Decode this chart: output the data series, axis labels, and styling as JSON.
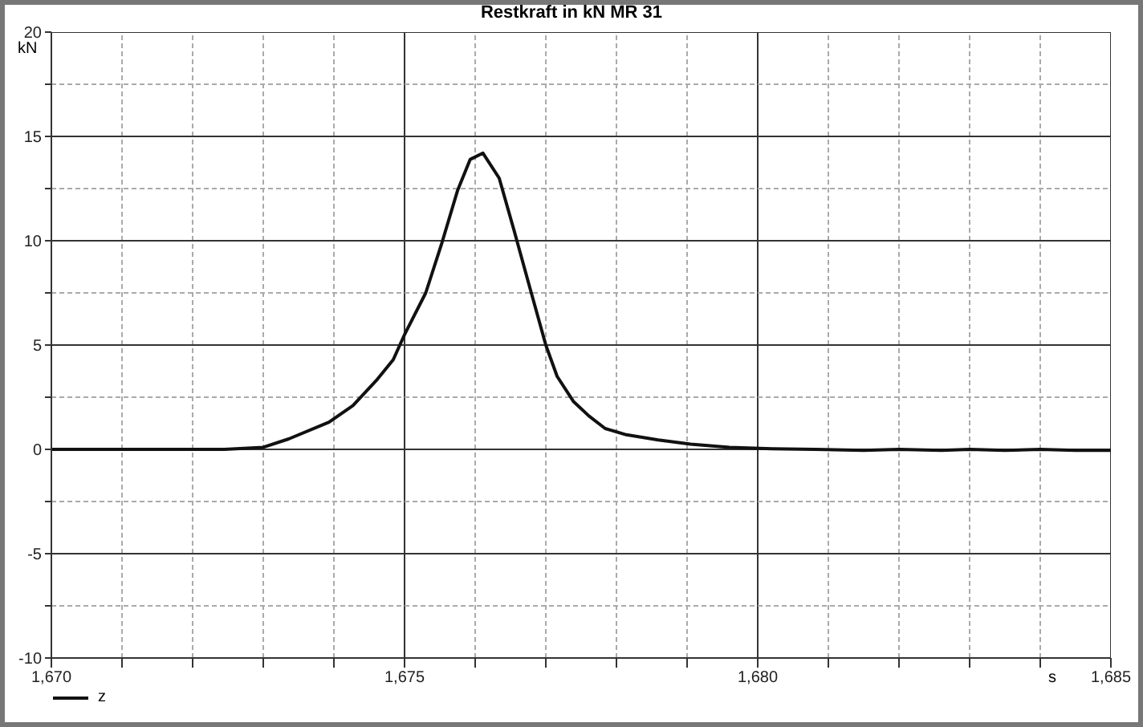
{
  "chart_data": {
    "type": "line",
    "title": "Restkraft in kN MR 31",
    "xlabel": "s",
    "ylabel": "kN",
    "x": [
      1670,
      1671,
      1672,
      1672.45,
      1673,
      1673.36,
      1673.93,
      1674.27,
      1674.6,
      1674.84,
      1675,
      1675.3,
      1675.52,
      1675.75,
      1675.93,
      1676.11,
      1676.34,
      1676.55,
      1676.77,
      1677,
      1677.16,
      1677.39,
      1677.61,
      1677.84,
      1678.14,
      1678.59,
      1679.05,
      1679.6,
      1680.2,
      1680.8,
      1681.5,
      1682,
      1682.6,
      1683,
      1683.5,
      1684,
      1684.5,
      1685
    ],
    "series": [
      {
        "name": "z",
        "color": "#111111",
        "values": [
          0,
          0,
          0,
          0,
          0.1,
          0.5,
          1.3,
          2.1,
          3.3,
          4.3,
          5.5,
          7.5,
          9.8,
          12.4,
          13.9,
          14.2,
          13,
          10.5,
          7.8,
          5,
          3.5,
          2.3,
          1.6,
          1,
          0.7,
          0.45,
          0.25,
          0.1,
          0.03,
          0,
          -0.05,
          0,
          -0.05,
          0,
          -0.05,
          0,
          -0.05,
          -0.05
        ]
      }
    ],
    "xlim": [
      1670,
      1685
    ],
    "xticks": [
      {
        "value": 1670,
        "label": "1,670"
      },
      {
        "value": 1671,
        "label": null
      },
      {
        "value": 1672,
        "label": null
      },
      {
        "value": 1673,
        "label": null
      },
      {
        "value": 1674,
        "label": null
      },
      {
        "value": 1675,
        "label": "1,675"
      },
      {
        "value": 1676,
        "label": null
      },
      {
        "value": 1677,
        "label": null
      },
      {
        "value": 1678,
        "label": null
      },
      {
        "value": 1679,
        "label": null
      },
      {
        "value": 1680,
        "label": "1,680"
      },
      {
        "value": 1681,
        "label": null
      },
      {
        "value": 1682,
        "label": null
      },
      {
        "value": 1683,
        "label": null
      },
      {
        "value": 1684,
        "label": null
      },
      {
        "value": 1685,
        "label": "1,685"
      }
    ],
    "ylim": [
      -10,
      20
    ],
    "yticks": [
      -10,
      {
        "value": -7.5,
        "label": null
      },
      -5,
      {
        "value": -2.5,
        "label": null
      },
      0,
      {
        "value": 2.5,
        "label": null
      },
      5,
      {
        "value": 7.5,
        "label": null
      },
      10,
      {
        "value": 12.5,
        "label": null
      },
      15,
      {
        "value": 17.5,
        "label": null
      },
      20
    ],
    "grid": true,
    "legend": "bottom left",
    "line_style": "solid",
    "marker": "none"
  }
}
